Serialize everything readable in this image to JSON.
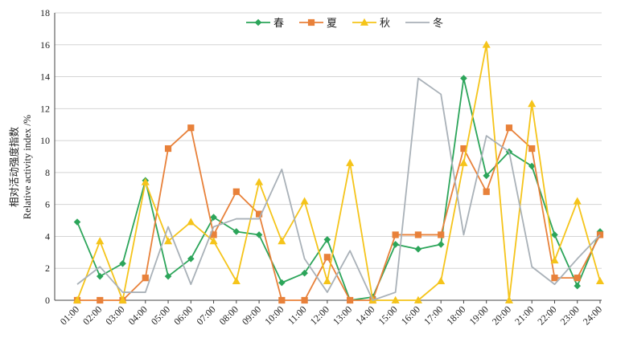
{
  "chart_data": {
    "type": "line",
    "ylabel_cn": "相对活动强度指数",
    "ylabel_en": "Relative activity index /%",
    "ylim": [
      0,
      18
    ],
    "yticks": [
      0,
      2,
      4,
      6,
      8,
      10,
      12,
      14,
      16,
      18
    ],
    "grid": "horizontal",
    "legend_position": "top-center",
    "categories": [
      "01:00",
      "02:00",
      "03:00",
      "04:00",
      "05:00",
      "06:00",
      "07:00",
      "08:00",
      "09:00",
      "10:00",
      "11:00",
      "12:00",
      "13:00",
      "14:00",
      "15:00",
      "16:00",
      "17:00",
      "18:00",
      "19:00",
      "20:00",
      "21:00",
      "22:00",
      "23:00",
      "24:00"
    ],
    "series": [
      {
        "name": "春",
        "color": "#2ca55a",
        "marker": "diamond",
        "values": [
          4.9,
          1.5,
          2.3,
          7.5,
          1.5,
          2.6,
          5.2,
          4.3,
          4.1,
          1.1,
          1.7,
          3.8,
          0.0,
          0.2,
          3.5,
          3.2,
          3.5,
          13.9,
          7.8,
          9.3,
          8.4,
          4.1,
          0.9,
          4.3
        ]
      },
      {
        "name": "夏",
        "color": "#e8813a",
        "marker": "square",
        "values": [
          0.0,
          0.0,
          0.0,
          1.4,
          9.5,
          10.8,
          4.1,
          6.8,
          5.4,
          0.0,
          0.0,
          2.7,
          0.0,
          0.0,
          4.1,
          4.1,
          4.1,
          9.5,
          6.8,
          10.8,
          9.5,
          1.4,
          1.4,
          4.1
        ]
      },
      {
        "name": "秋",
        "color": "#f5c41a",
        "marker": "triangle",
        "values": [
          0.0,
          3.7,
          0.0,
          7.4,
          3.7,
          4.9,
          3.7,
          1.2,
          7.4,
          3.7,
          6.2,
          1.2,
          8.6,
          0.0,
          0.0,
          0.0,
          1.2,
          8.6,
          16.0,
          0.0,
          12.3,
          2.5,
          6.2,
          1.2
        ]
      },
      {
        "name": "冬",
        "color": "#a9b1b8",
        "marker": "none",
        "values": [
          1.0,
          2.1,
          0.5,
          0.5,
          4.6,
          1.0,
          4.6,
          5.1,
          5.1,
          8.2,
          2.6,
          0.5,
          3.1,
          0.0,
          0.5,
          13.9,
          12.9,
          4.1,
          10.3,
          9.3,
          2.1,
          1.0,
          2.6,
          4.1
        ]
      }
    ]
  }
}
